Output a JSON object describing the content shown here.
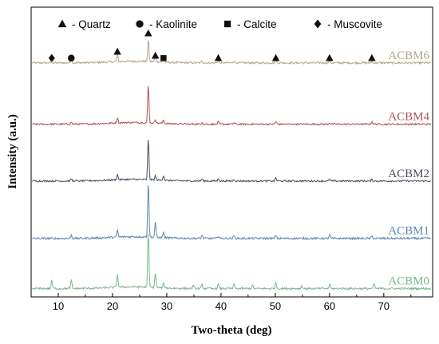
{
  "chart_data": {
    "type": "line",
    "title": "",
    "xlabel": "Two-theta (deg)",
    "ylabel": "Intensity (a.u.)",
    "xlim": [
      5,
      79
    ],
    "x_ticks": [
      10,
      20,
      30,
      40,
      50,
      60,
      70
    ],
    "y_ticks_labeled": false,
    "legend": {
      "placement": "top",
      "items": [
        {
          "symbol": "triangle",
          "label": "- Quartz"
        },
        {
          "symbol": "circle",
          "label": "- Kaolinite"
        },
        {
          "symbol": "square",
          "label": "- Calcite"
        },
        {
          "symbol": "diamond",
          "label": "- Muscovite"
        }
      ]
    },
    "peak_markers": [
      {
        "symbol": "diamond",
        "x": 8.8
      },
      {
        "symbol": "circle",
        "x": 12.4
      },
      {
        "symbol": "triangle",
        "x": 20.9
      },
      {
        "symbol": "triangle",
        "x": 26.6
      },
      {
        "symbol": "triangle",
        "x": 27.9
      },
      {
        "symbol": "square",
        "x": 29.4
      },
      {
        "symbol": "triangle",
        "x": 39.5
      },
      {
        "symbol": "triangle",
        "x": 50.1
      },
      {
        "symbol": "triangle",
        "x": 60.0
      },
      {
        "symbol": "triangle",
        "x": 67.8
      }
    ],
    "series": [
      {
        "name": "ACBM6",
        "color": "#b5a48c",
        "baseline": 4.1,
        "noise": 0.035,
        "peaks": [
          [
            8.8,
            0.04
          ],
          [
            12.4,
            0.07
          ],
          [
            20.9,
            0.13
          ],
          [
            26.6,
            0.4
          ],
          [
            27.9,
            0.1
          ],
          [
            29.4,
            0.07
          ],
          [
            36.5,
            0.04
          ],
          [
            39.5,
            0.04
          ],
          [
            42.4,
            0.04
          ],
          [
            50.1,
            0.05
          ],
          [
            60.0,
            0.04
          ],
          [
            67.8,
            0.03
          ]
        ]
      },
      {
        "name": "ACBM4",
        "color": "#b05058",
        "baseline": 3.0,
        "noise": 0.03,
        "peaks": [
          [
            12.4,
            0.04
          ],
          [
            20.9,
            0.1
          ],
          [
            26.6,
            0.7
          ],
          [
            27.9,
            0.07
          ],
          [
            29.4,
            0.07
          ],
          [
            36.5,
            0.04
          ],
          [
            39.5,
            0.04
          ],
          [
            42.4,
            0.03
          ],
          [
            50.1,
            0.05
          ],
          [
            60.0,
            0.03
          ],
          [
            67.8,
            0.05
          ]
        ]
      },
      {
        "name": "ACBM2",
        "color": "#4a4a5e",
        "baseline": 1.98,
        "noise": 0.03,
        "peaks": [
          [
            12.4,
            0.04
          ],
          [
            20.9,
            0.1
          ],
          [
            26.6,
            0.75
          ],
          [
            27.9,
            0.07
          ],
          [
            29.4,
            0.09
          ],
          [
            36.5,
            0.04
          ],
          [
            39.5,
            0.04
          ],
          [
            42.4,
            0.03
          ],
          [
            50.1,
            0.06
          ],
          [
            60.0,
            0.03
          ],
          [
            67.8,
            0.03
          ]
        ]
      },
      {
        "name": "ACBM1",
        "color": "#5b86b0",
        "baseline": 0.95,
        "noise": 0.035,
        "peaks": [
          [
            12.4,
            0.06
          ],
          [
            20.9,
            0.13
          ],
          [
            26.6,
            1.0
          ],
          [
            27.9,
            0.28
          ],
          [
            29.4,
            0.1
          ],
          [
            36.5,
            0.06
          ],
          [
            39.5,
            0.05
          ],
          [
            42.4,
            0.05
          ],
          [
            50.1,
            0.06
          ],
          [
            60.0,
            0.06
          ],
          [
            67.8,
            0.04
          ]
        ]
      },
      {
        "name": "ACBM0",
        "color": "#79b88a",
        "baseline": 0.05,
        "noise": 0.035,
        "peaks": [
          [
            8.8,
            0.14
          ],
          [
            12.4,
            0.15
          ],
          [
            20.9,
            0.25
          ],
          [
            26.6,
            1.0
          ],
          [
            27.9,
            0.27
          ],
          [
            29.4,
            0.08
          ],
          [
            34.9,
            0.05
          ],
          [
            36.5,
            0.07
          ],
          [
            39.5,
            0.08
          ],
          [
            42.4,
            0.08
          ],
          [
            45.8,
            0.06
          ],
          [
            50.1,
            0.11
          ],
          [
            54.9,
            0.05
          ],
          [
            60.0,
            0.07
          ],
          [
            68.2,
            0.09
          ]
        ]
      }
    ]
  }
}
